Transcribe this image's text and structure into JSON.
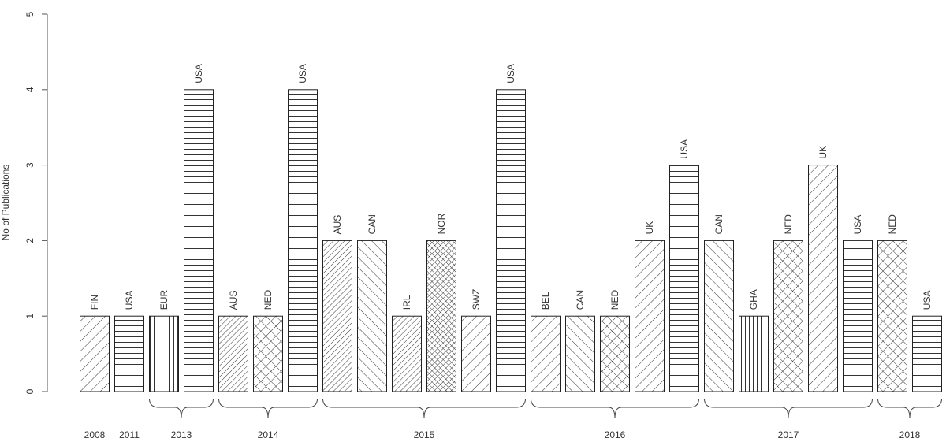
{
  "chart_data": {
    "type": "bar",
    "title": "",
    "xlabel": "",
    "ylabel": "No of Publications",
    "ylim": [
      0,
      5
    ],
    "yticks": [
      0,
      1,
      2,
      3,
      4,
      5
    ],
    "grid": false,
    "bars": [
      {
        "label": "FIN",
        "value": 1,
        "pattern": "diag-up"
      },
      {
        "label": "USA",
        "value": 1,
        "pattern": "horizontal"
      },
      {
        "label": "EUR",
        "value": 1,
        "pattern": "vertical"
      },
      {
        "label": "USA",
        "value": 4,
        "pattern": "horizontal"
      },
      {
        "label": "AUS",
        "value": 1,
        "pattern": "diag-up-dense"
      },
      {
        "label": "NED",
        "value": 1,
        "pattern": "crosshatch"
      },
      {
        "label": "USA",
        "value": 4,
        "pattern": "horizontal"
      },
      {
        "label": "AUS",
        "value": 2,
        "pattern": "diag-up-dense"
      },
      {
        "label": "CAN",
        "value": 2,
        "pattern": "diag-down"
      },
      {
        "label": "IRL",
        "value": 1,
        "pattern": "diag-up-dense"
      },
      {
        "label": "NOR",
        "value": 2,
        "pattern": "crosshatch-dense"
      },
      {
        "label": "SWZ",
        "value": 1,
        "pattern": "diag-up"
      },
      {
        "label": "USA",
        "value": 4,
        "pattern": "horizontal"
      },
      {
        "label": "BEL",
        "value": 1,
        "pattern": "diag-up"
      },
      {
        "label": "CAN",
        "value": 1,
        "pattern": "diag-down"
      },
      {
        "label": "NED",
        "value": 1,
        "pattern": "crosshatch"
      },
      {
        "label": "UK",
        "value": 2,
        "pattern": "diag-up"
      },
      {
        "label": "USA",
        "value": 3,
        "pattern": "horizontal"
      },
      {
        "label": "CAN",
        "value": 2,
        "pattern": "diag-down"
      },
      {
        "label": "GHA",
        "value": 1,
        "pattern": "vertical"
      },
      {
        "label": "NED",
        "value": 2,
        "pattern": "crosshatch"
      },
      {
        "label": "UK",
        "value": 3,
        "pattern": "diag-up"
      },
      {
        "label": "USA",
        "value": 2,
        "pattern": "horizontal"
      },
      {
        "label": "NED",
        "value": 2,
        "pattern": "crosshatch"
      },
      {
        "label": "USA",
        "value": 1,
        "pattern": "horizontal"
      }
    ],
    "groups": [
      {
        "year": "2008",
        "start": 0,
        "end": 0,
        "brace": false
      },
      {
        "year": "2011",
        "start": 1,
        "end": 1,
        "brace": false
      },
      {
        "year": "2013",
        "start": 2,
        "end": 3,
        "brace": true
      },
      {
        "year": "2014",
        "start": 4,
        "end": 6,
        "brace": true
      },
      {
        "year": "2015",
        "start": 7,
        "end": 12,
        "brace": true
      },
      {
        "year": "2016",
        "start": 13,
        "end": 17,
        "brace": true
      },
      {
        "year": "2017",
        "start": 18,
        "end": 22,
        "brace": true
      },
      {
        "year": "2018",
        "start": 23,
        "end": 24,
        "brace": true
      }
    ]
  }
}
